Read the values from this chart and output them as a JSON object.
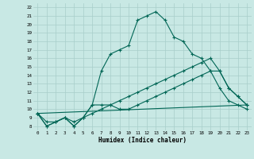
{
  "xlabel": "Humidex (Indice chaleur)",
  "xlim": [
    -0.5,
    23.5
  ],
  "ylim": [
    7.5,
    22.5
  ],
  "xticks": [
    0,
    1,
    2,
    3,
    4,
    5,
    6,
    7,
    8,
    9,
    10,
    11,
    12,
    13,
    14,
    15,
    16,
    17,
    18,
    19,
    20,
    21,
    22,
    23
  ],
  "yticks": [
    8,
    9,
    10,
    11,
    12,
    13,
    14,
    15,
    16,
    17,
    18,
    19,
    20,
    21,
    22
  ],
  "background_color": "#c8e8e4",
  "grid_color": "#a8ceca",
  "line_color": "#006655",
  "line1_x": [
    0,
    1,
    2,
    3,
    4,
    5,
    6,
    7,
    8,
    9,
    10,
    11,
    12,
    13,
    14,
    15,
    16,
    17,
    18,
    19,
    20,
    21,
    22,
    23
  ],
  "line1_y": [
    9.5,
    8.0,
    8.5,
    9.0,
    8.0,
    9.0,
    10.5,
    14.5,
    16.5,
    17.0,
    17.5,
    20.5,
    21.0,
    21.5,
    20.5,
    18.5,
    18.0,
    16.5,
    16.0,
    14.5,
    12.5,
    11.0,
    10.5,
    10.0
  ],
  "line2_x": [
    0,
    1,
    2,
    3,
    4,
    5,
    6,
    7,
    8,
    9,
    10,
    11,
    12,
    13,
    14,
    15,
    16,
    17,
    18,
    19,
    20,
    21,
    22,
    23
  ],
  "line2_y": [
    9.5,
    8.0,
    8.5,
    9.0,
    8.0,
    9.0,
    10.5,
    10.5,
    10.5,
    10.0,
    10.0,
    10.5,
    11.0,
    11.5,
    12.0,
    12.5,
    13.0,
    13.5,
    14.0,
    14.5,
    14.5,
    12.5,
    11.5,
    10.5
  ],
  "line3_x": [
    0,
    1,
    2,
    3,
    4,
    5,
    6,
    7,
    8,
    9,
    10,
    11,
    12,
    13,
    14,
    15,
    16,
    17,
    18,
    19,
    20,
    21,
    22,
    23
  ],
  "line3_y": [
    9.5,
    8.5,
    8.5,
    9.0,
    8.5,
    9.0,
    9.5,
    10.0,
    10.5,
    11.0,
    11.5,
    12.0,
    12.5,
    13.0,
    13.5,
    14.0,
    14.5,
    15.0,
    15.5,
    16.0,
    14.5,
    12.5,
    11.5,
    10.5
  ],
  "line4_x": [
    0,
    23
  ],
  "line4_y": [
    9.5,
    10.5
  ]
}
